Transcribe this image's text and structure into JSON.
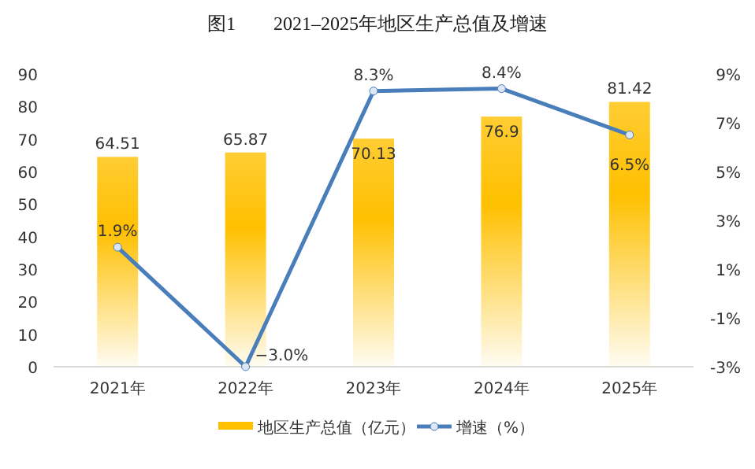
{
  "chart_data": {
    "type": "bar",
    "title": "图1        2021–2025年地区生产总值及增速",
    "categories": [
      "2021年",
      "2022年",
      "2023年",
      "2024年",
      "2025年"
    ],
    "series": [
      {
        "name": "地区生产总值（亿元）",
        "color": "#ffc000",
        "values": [
          64.51,
          65.87,
          70.13,
          76.9,
          81.42
        ],
        "value_labels": [
          "64.51",
          "65.87",
          "70.13",
          "76.9",
          "81.42"
        ]
      },
      {
        "name": "增速（%）",
        "type": "line",
        "axis": "y2",
        "color": "#4a7ebb",
        "values": [
          1.9,
          -3.0,
          8.3,
          8.4,
          6.5
        ],
        "value_labels": [
          "1.9%",
          "−3.0%",
          "8.3%",
          "8.4%",
          "6.5%"
        ]
      }
    ],
    "ylim": [
      0,
      90
    ],
    "yticks": [
      0,
      10,
      20,
      30,
      40,
      50,
      60,
      70,
      80,
      90
    ],
    "y2lim": [
      -3,
      9
    ],
    "y2ticks": [
      {
        "value": -3,
        "label": "-3%"
      },
      {
        "value": -1,
        "label": "-1%"
      },
      {
        "value": 1,
        "label": "1%"
      },
      {
        "value": 3,
        "label": "3%"
      },
      {
        "value": 5,
        "label": "5%"
      },
      {
        "value": 7,
        "label": "7%"
      },
      {
        "value": 9,
        "label": "9%"
      }
    ],
    "legend": "bottom",
    "grid": false,
    "marker": "circle",
    "line_style": "solid"
  }
}
